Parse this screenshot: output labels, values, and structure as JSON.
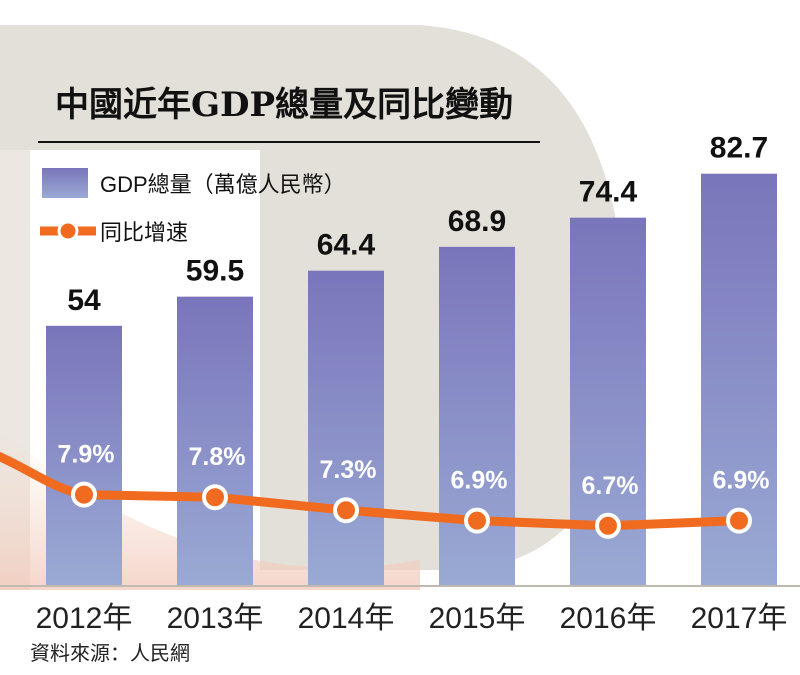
{
  "colors": {
    "bar_top": "#7a75bb",
    "bar_bottom": "#9aaad4",
    "line": "#f06b1f",
    "marker_fill": "#f06b1f",
    "marker_stroke": "#ffffff",
    "background_shape": "#e3e0d9",
    "value_label": "#111111",
    "pct_label": "#ffffff"
  },
  "chart_data": {
    "type": "bar",
    "title": "中國近年GDP總量及同比變動",
    "categories": [
      "2012年",
      "2013年",
      "2014年",
      "2015年",
      "2016年",
      "2017年"
    ],
    "series": [
      {
        "name": "GDP總量（萬億人民幣）",
        "type": "bar",
        "values": [
          54,
          59.5,
          64.4,
          68.9,
          74.4,
          82.7
        ],
        "labels": [
          "54",
          "59.5",
          "64.4",
          "68.9",
          "74.4",
          "82.7"
        ]
      },
      {
        "name": "同比增速",
        "type": "line",
        "values": [
          7.9,
          7.8,
          7.3,
          6.9,
          6.7,
          6.9
        ],
        "labels": [
          "7.9%",
          "7.8%",
          "7.3%",
          "6.9%",
          "6.7%",
          "6.9%"
        ]
      }
    ],
    "legend": [
      "GDP總量（萬億人民幣）",
      "同比增速"
    ],
    "legend_position": "top-left",
    "source": "資料來源：人民網",
    "grid": false
  }
}
